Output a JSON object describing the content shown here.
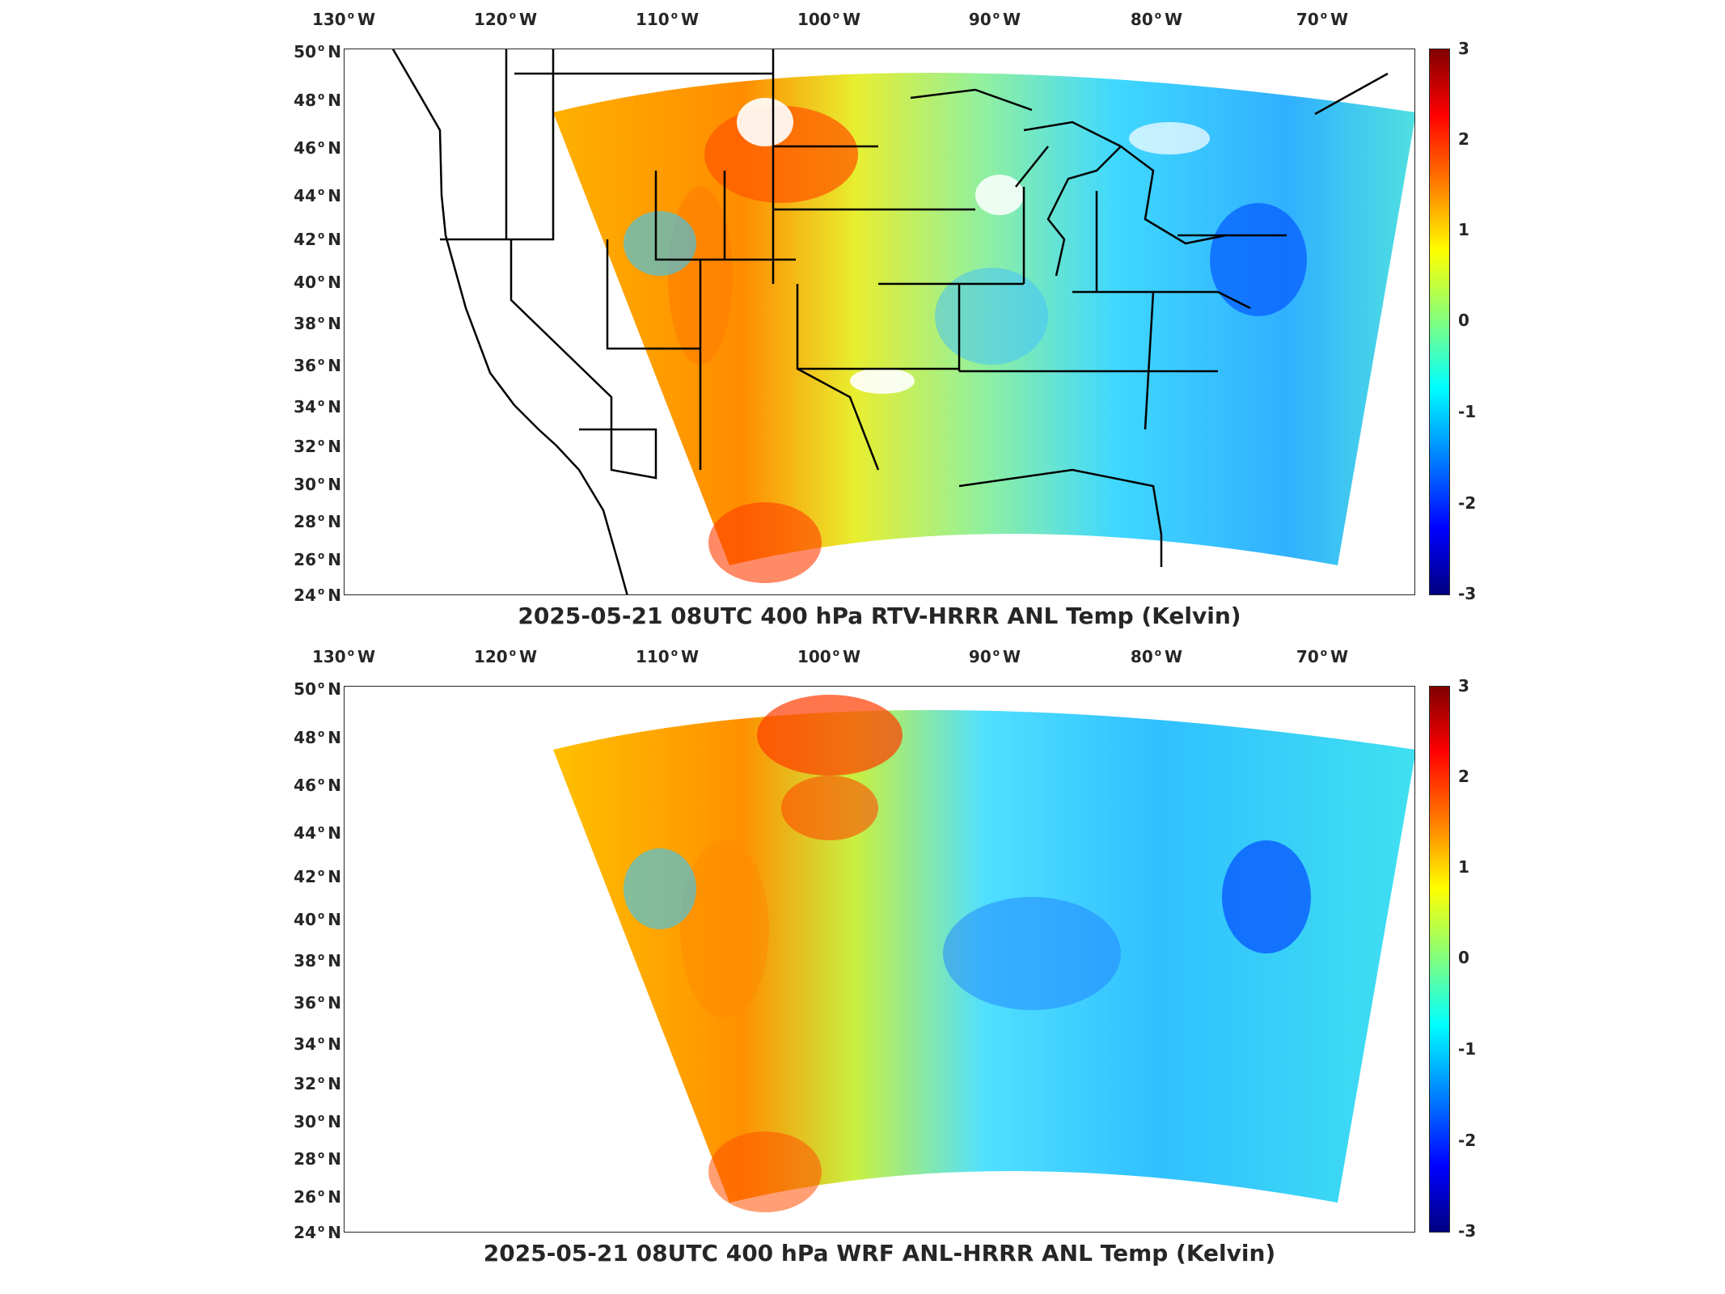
{
  "longitude_labels": [
    {
      "value": "130",
      "hemi": "W"
    },
    {
      "value": "120",
      "hemi": "W"
    },
    {
      "value": "110",
      "hemi": "W"
    },
    {
      "value": "100",
      "hemi": "W"
    },
    {
      "value": "90",
      "hemi": "W"
    },
    {
      "value": "80",
      "hemi": "W"
    },
    {
      "value": "70",
      "hemi": "W"
    }
  ],
  "latitude_labels": [
    {
      "value": "50",
      "hemi": "N"
    },
    {
      "value": "48",
      "hemi": "N"
    },
    {
      "value": "46",
      "hemi": "N"
    },
    {
      "value": "44",
      "hemi": "N"
    },
    {
      "value": "42",
      "hemi": "N"
    },
    {
      "value": "40",
      "hemi": "N"
    },
    {
      "value": "38",
      "hemi": "N"
    },
    {
      "value": "36",
      "hemi": "N"
    },
    {
      "value": "34",
      "hemi": "N"
    },
    {
      "value": "32",
      "hemi": "N"
    },
    {
      "value": "30",
      "hemi": "N"
    },
    {
      "value": "28",
      "hemi": "N"
    },
    {
      "value": "26",
      "hemi": "N"
    },
    {
      "value": "24",
      "hemi": "N"
    }
  ],
  "colorbar": {
    "ticks": [
      "3",
      "2",
      "1",
      "0",
      "-1",
      "-2",
      "-3"
    ],
    "range": [
      -3,
      3
    ],
    "colormap": "jet"
  },
  "panels": [
    {
      "title": "2025-05-21 08UTC 400 hPa RTV-HRRR ANL Temp (Kelvin)"
    },
    {
      "title": "2025-05-21 08UTC 400 hPa WRF ANL-HRRR ANL Temp (Kelvin)"
    }
  ],
  "colors": {
    "warm": "#ff6a00",
    "neutral": "#a8f070",
    "cool": "#2ec8ff",
    "cold": "#1040ff"
  }
}
